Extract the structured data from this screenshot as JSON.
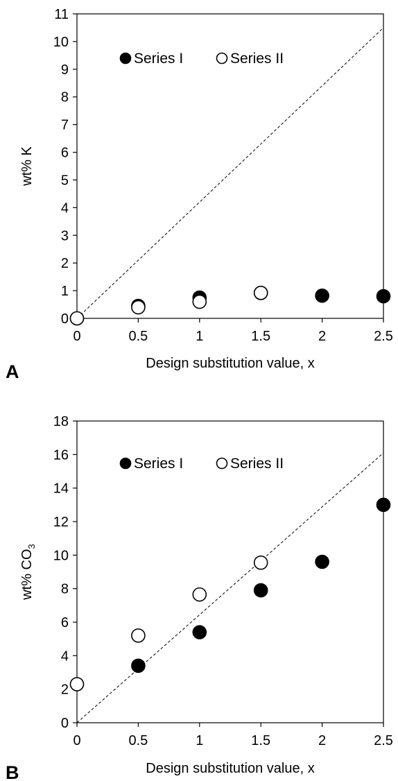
{
  "chart_data": [
    {
      "panel": "A",
      "type": "scatter",
      "xlabel": "Design substitution value, x",
      "ylabel": "wt% K",
      "xlim": [
        0,
        2.5
      ],
      "ylim": [
        0,
        11
      ],
      "xticks": [
        "0",
        "0.5",
        "1",
        "1.5",
        "2",
        "2.5"
      ],
      "yticks": [
        "0",
        "1",
        "2",
        "3",
        "4",
        "5",
        "6",
        "7",
        "8",
        "9",
        "10",
        "11"
      ],
      "legend_position": "top-left",
      "grid": false,
      "series": [
        {
          "name": "Series I",
          "marker": "filled-circle",
          "x": [
            0,
            0.5,
            1,
            1.5,
            2,
            2.5
          ],
          "y": [
            0,
            0.45,
            0.75,
            0.92,
            0.82,
            0.8
          ]
        },
        {
          "name": "Series II",
          "marker": "open-circle",
          "x": [
            0,
            0.5,
            1,
            1.5
          ],
          "y": [
            0,
            0.4,
            0.6,
            0.92
          ]
        }
      ],
      "reference_line": {
        "style": "dashed",
        "x": [
          0,
          2.5
        ],
        "y": [
          0,
          10.5
        ]
      }
    },
    {
      "panel": "B",
      "type": "scatter",
      "xlabel": "Design substitution value, x",
      "ylabel": "wt% CO",
      "ylabel_subscript": "3",
      "xlim": [
        0,
        2.5
      ],
      "ylim": [
        0,
        18
      ],
      "xticks": [
        "0",
        "0.5",
        "1",
        "1.5",
        "2",
        "2.5"
      ],
      "yticks": [
        "0",
        "2",
        "4",
        "6",
        "8",
        "10",
        "12",
        "14",
        "16",
        "18"
      ],
      "legend_position": "top-left",
      "grid": false,
      "series": [
        {
          "name": "Series I",
          "marker": "filled-circle",
          "x": [
            0.5,
            1,
            1.5,
            2,
            2.5
          ],
          "y": [
            3.4,
            5.4,
            7.9,
            9.6,
            13.0
          ]
        },
        {
          "name": "Series II",
          "marker": "open-circle",
          "x": [
            0,
            0.5,
            1,
            1.5
          ],
          "y": [
            2.3,
            5.2,
            7.65,
            9.55
          ]
        }
      ],
      "reference_line": {
        "style": "dashed",
        "x": [
          0,
          2.5
        ],
        "y": [
          0,
          16.1
        ]
      }
    }
  ]
}
